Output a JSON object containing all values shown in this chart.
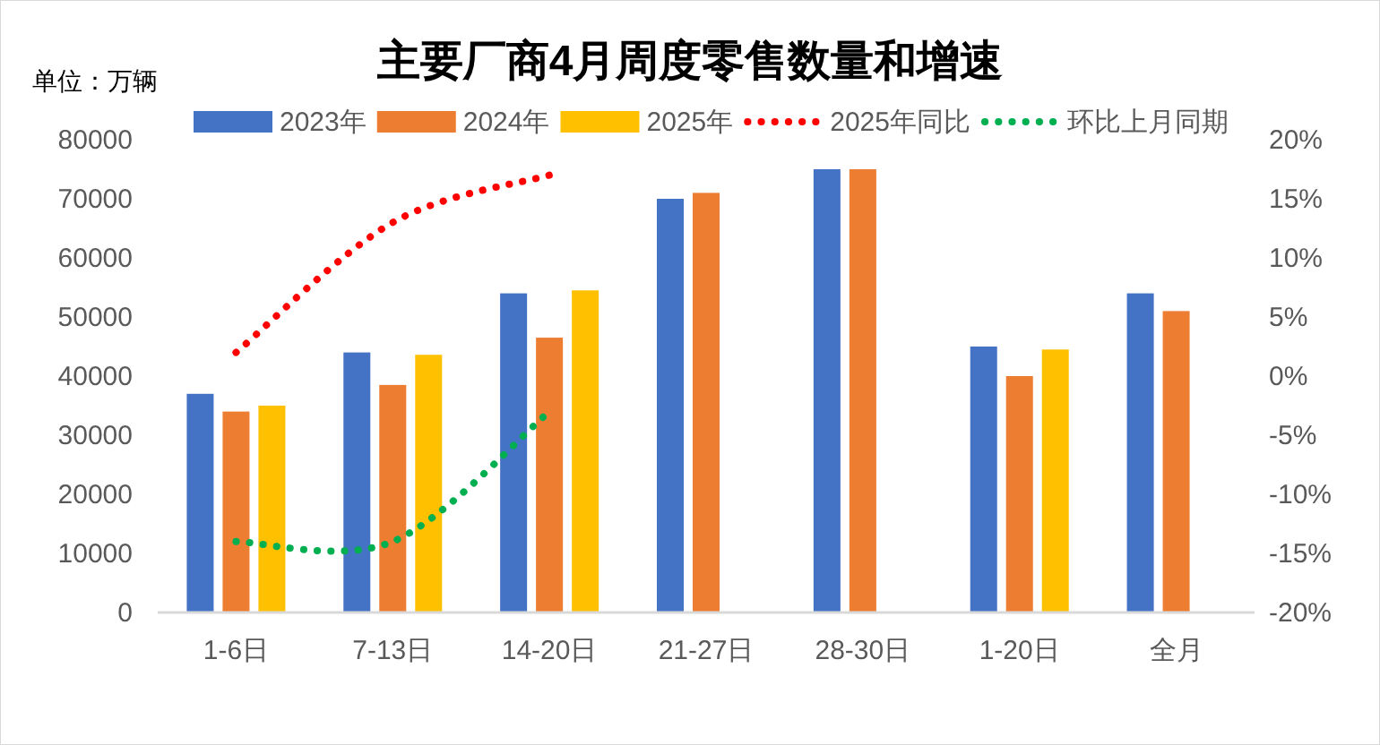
{
  "chart_data": {
    "type": "bar",
    "title": "主要厂商4月周度零售数量和增速",
    "ylabel": "单位：万辆",
    "categories": [
      "1-6日",
      "7-13日",
      "14-20日",
      "21-27日",
      "28-30日",
      "1-20日",
      "全月"
    ],
    "series": [
      {
        "name": "2023年",
        "color": "#4472c4",
        "values": [
          37000,
          44000,
          54000,
          70000,
          75000,
          45000,
          54000
        ]
      },
      {
        "name": "2024年",
        "color": "#ed7d31",
        "values": [
          34000,
          38500,
          46500,
          71000,
          75000,
          40000,
          51000
        ]
      },
      {
        "name": "2025年",
        "color": "#ffc000",
        "values": [
          35000,
          43600,
          54500,
          null,
          null,
          44500,
          null
        ]
      },
      {
        "name": "2025年同比",
        "type": "line",
        "axis": "y2",
        "color": "#ff0000",
        "line_style": "dotted",
        "values": [
          2,
          13,
          17,
          null,
          null,
          null,
          null
        ]
      },
      {
        "name": "环比上月同期",
        "type": "line",
        "axis": "y2",
        "color": "#00b050",
        "line_style": "dotted",
        "values": [
          -14,
          -14,
          -3,
          null,
          null,
          null,
          null
        ]
      }
    ],
    "ylim": [
      0,
      80000
    ],
    "yticks": [
      0,
      10000,
      20000,
      30000,
      40000,
      50000,
      60000,
      70000,
      80000
    ],
    "y2lim": [
      -20,
      20
    ],
    "y2ticks": [
      {
        "value": -20,
        "label": "-20%"
      },
      {
        "value": -15,
        "label": "-15%"
      },
      {
        "value": -10,
        "label": "-10%"
      },
      {
        "value": -5,
        "label": "-5%"
      },
      {
        "value": 0,
        "label": "0%"
      },
      {
        "value": 5,
        "label": "5%"
      },
      {
        "value": 10,
        "label": "10%"
      },
      {
        "value": 15,
        "label": "15%"
      },
      {
        "value": 20,
        "label": "20%"
      }
    ],
    "grid": false,
    "legend": "top"
  }
}
